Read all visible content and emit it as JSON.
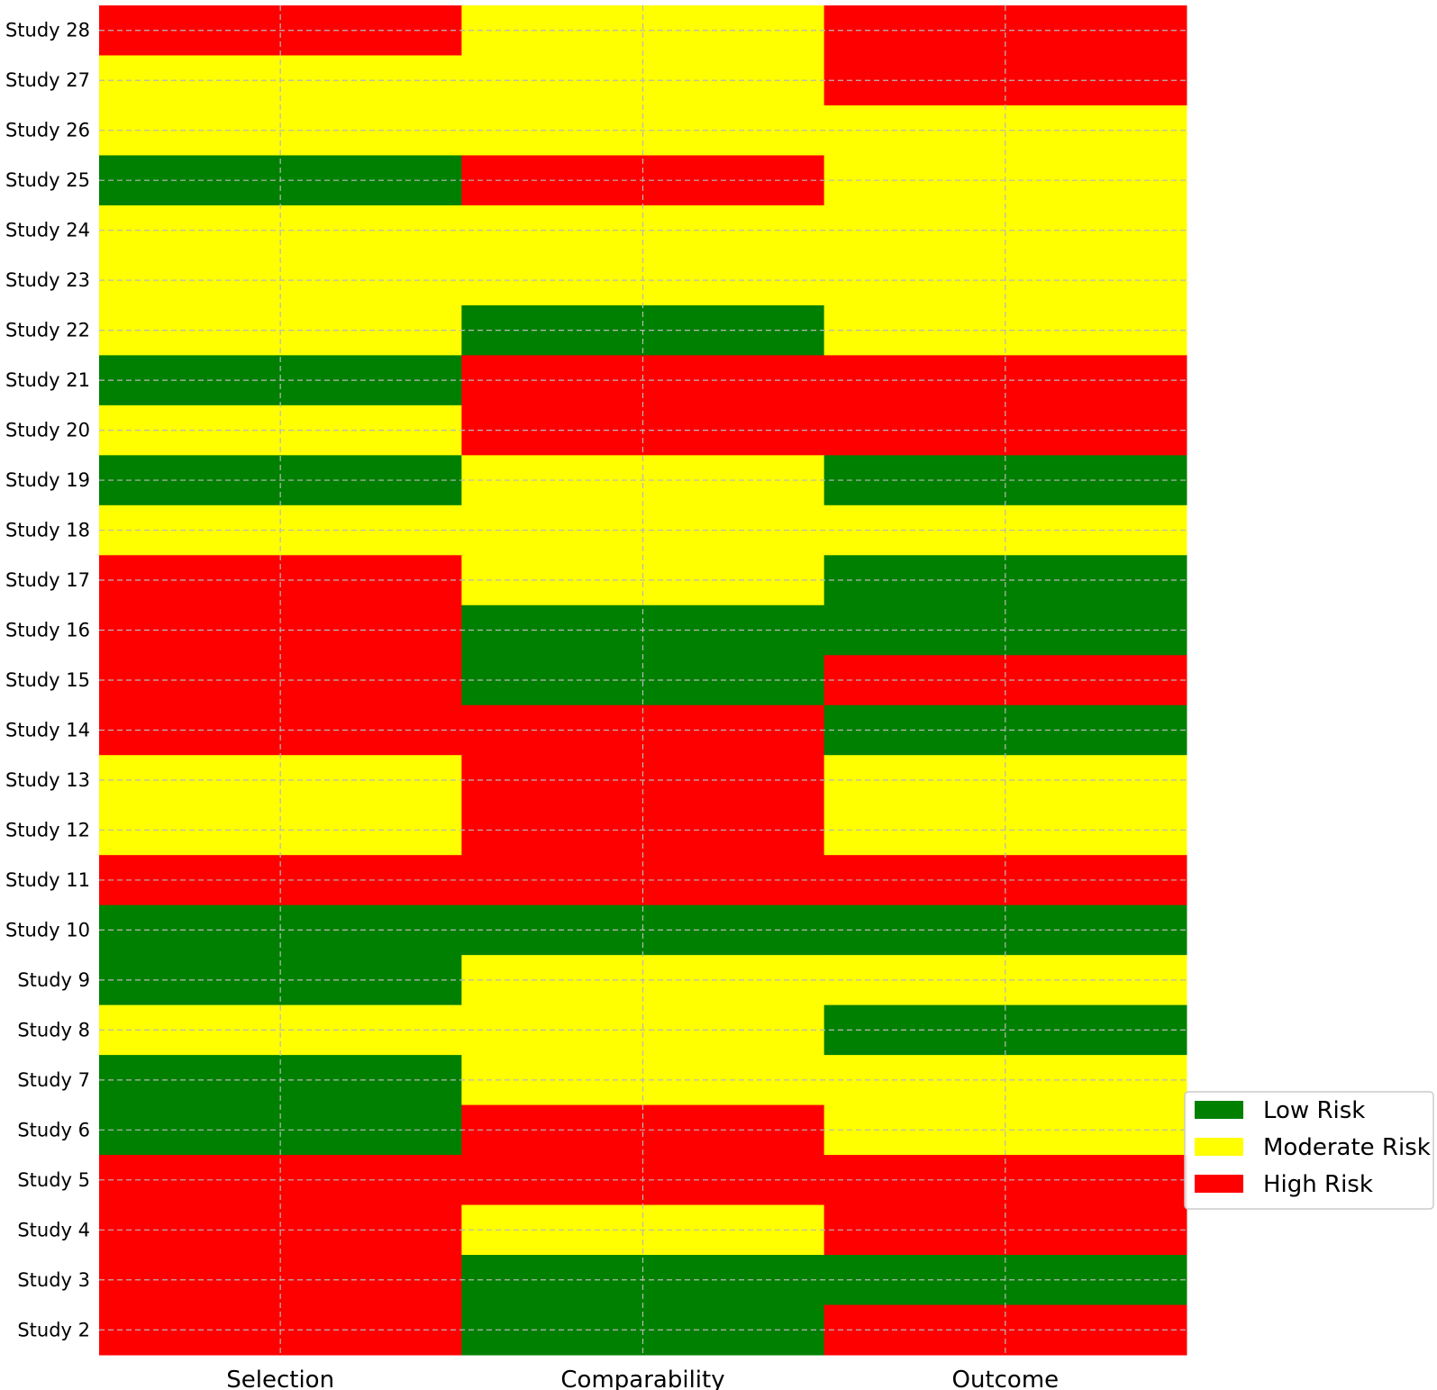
{
  "chart_data": {
    "type": "heatmap",
    "title": "",
    "xlabel": "",
    "ylabel": "",
    "columns": [
      "Selection",
      "Comparability",
      "Outcome"
    ],
    "rows": [
      "Study 28",
      "Study 27",
      "Study 26",
      "Study 25",
      "Study 24",
      "Study 23",
      "Study 22",
      "Study 21",
      "Study 20",
      "Study 19",
      "Study 18",
      "Study 17",
      "Study 16",
      "Study 15",
      "Study 14",
      "Study 13",
      "Study 12",
      "Study 11",
      "Study 10",
      "Study 9",
      "Study 8",
      "Study 7",
      "Study 6",
      "Study 5",
      "Study 4",
      "Study 3",
      "Study 2"
    ],
    "values": [
      [
        "High Risk",
        "Moderate Risk",
        "High Risk"
      ],
      [
        "Moderate Risk",
        "Moderate Risk",
        "High Risk"
      ],
      [
        "Moderate Risk",
        "Moderate Risk",
        "Moderate Risk"
      ],
      [
        "Low Risk",
        "High Risk",
        "Moderate Risk"
      ],
      [
        "Moderate Risk",
        "Moderate Risk",
        "Moderate Risk"
      ],
      [
        "Moderate Risk",
        "Moderate Risk",
        "Moderate Risk"
      ],
      [
        "Moderate Risk",
        "Low Risk",
        "Moderate Risk"
      ],
      [
        "Low Risk",
        "High Risk",
        "High Risk"
      ],
      [
        "Moderate Risk",
        "High Risk",
        "High Risk"
      ],
      [
        "Low Risk",
        "Moderate Risk",
        "Low Risk"
      ],
      [
        "Moderate Risk",
        "Moderate Risk",
        "Moderate Risk"
      ],
      [
        "High Risk",
        "Moderate Risk",
        "Low Risk"
      ],
      [
        "High Risk",
        "Low Risk",
        "Low Risk"
      ],
      [
        "High Risk",
        "Low Risk",
        "High Risk"
      ],
      [
        "High Risk",
        "High Risk",
        "Low Risk"
      ],
      [
        "Moderate Risk",
        "High Risk",
        "Moderate Risk"
      ],
      [
        "Moderate Risk",
        "High Risk",
        "Moderate Risk"
      ],
      [
        "High Risk",
        "High Risk",
        "High Risk"
      ],
      [
        "Low Risk",
        "Low Risk",
        "Low Risk"
      ],
      [
        "Low Risk",
        "Moderate Risk",
        "Moderate Risk"
      ],
      [
        "Moderate Risk",
        "Moderate Risk",
        "Low Risk"
      ],
      [
        "Low Risk",
        "Moderate Risk",
        "Moderate Risk"
      ],
      [
        "Low Risk",
        "High Risk",
        "Moderate Risk"
      ],
      [
        "High Risk",
        "High Risk",
        "High Risk"
      ],
      [
        "High Risk",
        "Moderate Risk",
        "High Risk"
      ],
      [
        "High Risk",
        "Low Risk",
        "Low Risk"
      ],
      [
        "High Risk",
        "Low Risk",
        "High Risk"
      ]
    ],
    "legend": {
      "placement": "center-right",
      "entries": [
        {
          "label": "Low Risk",
          "color": "#008000"
        },
        {
          "label": "Moderate Risk",
          "color": "#ffff00"
        },
        {
          "label": "High Risk",
          "color": "#ff0000"
        }
      ]
    },
    "grid": true
  }
}
